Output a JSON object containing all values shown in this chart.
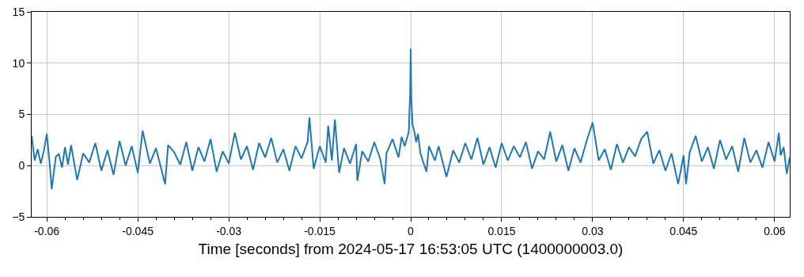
{
  "chart_data": {
    "type": "line",
    "xlabel": "Time [seconds] from 2024-05-17 16:53:05 UTC (1400000003.0)",
    "xlim": [
      -0.0625,
      0.0625
    ],
    "xticks": [
      -0.06,
      -0.045,
      -0.03,
      -0.015,
      0,
      0.015,
      0.03,
      0.045,
      0.06,
      {
        "value": -0.057,
        "label": null
      },
      {
        "value": -0.054,
        "label": null
      },
      {
        "value": -0.051,
        "label": null
      },
      {
        "value": -0.048,
        "label": null
      },
      {
        "value": -0.042,
        "label": null
      },
      {
        "value": -0.039,
        "label": null
      },
      {
        "value": -0.036,
        "label": null
      },
      {
        "value": -0.033,
        "label": null
      },
      {
        "value": -0.027,
        "label": null
      },
      {
        "value": -0.024,
        "label": null
      },
      {
        "value": -0.021,
        "label": null
      },
      {
        "value": -0.018,
        "label": null
      },
      {
        "value": -0.012,
        "label": null
      },
      {
        "value": -0.009,
        "label": null
      },
      {
        "value": -0.006,
        "label": null
      },
      {
        "value": -0.003,
        "label": null
      },
      {
        "value": 0.003,
        "label": null
      },
      {
        "value": 0.006,
        "label": null
      },
      {
        "value": 0.009,
        "label": null
      },
      {
        "value": 0.012,
        "label": null
      },
      {
        "value": 0.018,
        "label": null
      },
      {
        "value": 0.021,
        "label": null
      },
      {
        "value": 0.024,
        "label": null
      },
      {
        "value": 0.027,
        "label": null
      },
      {
        "value": 0.033,
        "label": null
      },
      {
        "value": 0.036,
        "label": null
      },
      {
        "value": 0.039,
        "label": null
      },
      {
        "value": 0.042,
        "label": null
      },
      {
        "value": 0.048,
        "label": null
      },
      {
        "value": 0.051,
        "label": null
      },
      {
        "value": 0.054,
        "label": null
      },
      {
        "value": 0.057,
        "label": null
      }
    ],
    "ylim": [
      -5,
      15
    ],
    "yticks": [
      {
        "value": -5,
        "label": "−5"
      },
      0,
      5,
      10,
      15
    ],
    "grid": true,
    "marker": "none",
    "line_style": "solid",
    "series": [
      {
        "color": "#1f77b4",
        "x": [
          -0.0625,
          -0.062,
          -0.0615,
          -0.061,
          -0.0605,
          -0.06,
          -0.0595,
          -0.0592,
          -0.0585,
          -0.058,
          -0.0575,
          -0.057,
          -0.0565,
          -0.056,
          -0.055,
          -0.054,
          -0.053,
          -0.052,
          -0.051,
          -0.05,
          -0.049,
          -0.048,
          -0.047,
          -0.046,
          -0.045,
          -0.0442,
          -0.043,
          -0.042,
          -0.0405,
          -0.04,
          -0.039,
          -0.038,
          -0.037,
          -0.036,
          -0.035,
          -0.034,
          -0.033,
          -0.032,
          -0.031,
          -0.03,
          -0.029,
          -0.028,
          -0.027,
          -0.026,
          -0.025,
          -0.024,
          -0.023,
          -0.022,
          -0.021,
          -0.02,
          -0.019,
          -0.018,
          -0.017,
          -0.0167,
          -0.016,
          -0.015,
          -0.014,
          -0.0136,
          -0.013,
          -0.0125,
          -0.0118,
          -0.011,
          -0.01,
          -0.009,
          -0.0088,
          -0.008,
          -0.007,
          -0.006,
          -0.005,
          -0.0043,
          -0.004,
          -0.003,
          -0.002,
          -0.0015,
          -0.001,
          -0.0005,
          -0.0003,
          -0.0002,
          -0.0001,
          0,
          0.0001,
          0.0003,
          0.0006,
          0.0009,
          0.0012,
          0.0016,
          0.0026,
          0.003,
          0.004,
          0.0046,
          0.0059,
          0.007,
          0.008,
          0.009,
          0.01,
          0.011,
          0.012,
          0.013,
          0.014,
          0.015,
          0.016,
          0.017,
          0.018,
          0.019,
          0.02,
          0.021,
          0.022,
          0.023,
          0.024,
          0.025,
          0.026,
          0.027,
          0.028,
          0.029,
          0.03,
          0.031,
          0.032,
          0.033,
          0.034,
          0.035,
          0.036,
          0.037,
          0.038,
          0.039,
          0.04,
          0.041,
          0.042,
          0.043,
          0.0441,
          0.045,
          0.0454,
          0.046,
          0.047,
          0.048,
          0.049,
          0.05,
          0.051,
          0.052,
          0.053,
          0.054,
          0.055,
          0.056,
          0.057,
          0.058,
          0.059,
          0.06,
          0.0607,
          0.061,
          0.0615,
          0.062,
          0.0625
        ],
        "values": [
          2.9,
          0.5,
          1.6,
          0.2,
          1.4,
          3.1,
          0.0,
          -2.3,
          0.9,
          1.1,
          -0.2,
          1.8,
          0.1,
          2.0,
          -1.4,
          1.2,
          0.3,
          2.2,
          -0.5,
          1.5,
          -0.9,
          2.4,
          0.0,
          1.9,
          -0.7,
          3.4,
          0.2,
          1.7,
          -1.8,
          2.0,
          1.3,
          0.1,
          2.3,
          -0.5,
          1.8,
          0.4,
          2.6,
          -0.6,
          1.4,
          0.2,
          3.2,
          0.6,
          1.9,
          -0.4,
          2.2,
          0.8,
          2.7,
          0.3,
          1.6,
          -0.5,
          1.9,
          0.7,
          2.3,
          4.7,
          -0.3,
          1.9,
          0.3,
          3.9,
          0.5,
          4.5,
          -0.7,
          1.7,
          0.2,
          2.1,
          -1.5,
          1.4,
          0.4,
          2.3,
          0.6,
          -1.8,
          1.2,
          2.6,
          0.8,
          2.8,
          1.9,
          2.9,
          3.4,
          5.5,
          6.8,
          11.4,
          6.5,
          4.0,
          3.3,
          2.3,
          3.1,
          1.2,
          -0.6,
          1.9,
          0.5,
          1.9,
          -1.1,
          1.5,
          0.3,
          2.2,
          0.6,
          2.7,
          0.1,
          1.8,
          -0.2,
          2.2,
          0.5,
          1.9,
          0.8,
          2.3,
          -0.3,
          1.4,
          0.6,
          3.3,
          0.4,
          2.0,
          -0.5,
          1.7,
          0.3,
          2.4,
          4.2,
          0.5,
          1.6,
          -0.4,
          2.1,
          0.3,
          1.8,
          0.9,
          2.6,
          3.3,
          0.2,
          1.5,
          -0.5,
          1.2,
          -1.8,
          1.0,
          -1.8,
          1.3,
          2.9,
          0.4,
          1.8,
          -0.3,
          2.5,
          0.6,
          1.9,
          -0.6,
          2.7,
          0.3,
          1.5,
          -0.2,
          2.3,
          0.4,
          3.2,
          1.0,
          1.8,
          -0.8,
          0.8
        ]
      }
    ]
  }
}
